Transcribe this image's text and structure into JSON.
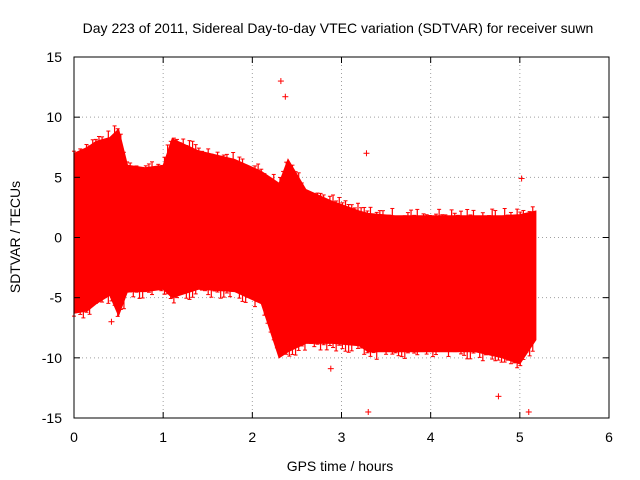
{
  "chart_data": {
    "type": "scatter",
    "title": "Day 223 of 2011, Sidereal Day-to-day VTEC variation (SDTVAR) for receiver suwn",
    "xlabel": "GPS time / hours",
    "ylabel": "SDTVAR / TECUs",
    "xlim": [
      0,
      6
    ],
    "ylim": [
      -15,
      15
    ],
    "xticks": [
      0,
      1,
      2,
      3,
      4,
      5,
      6
    ],
    "yticks": [
      -15,
      -10,
      -5,
      0,
      5,
      10,
      15
    ],
    "grid": true,
    "series_color": "#ff0000",
    "grid_color": "#a0a0a0",
    "series": [
      {
        "name": "SDTVAR",
        "style": "points with error bars",
        "x": [
          0.0,
          0.15,
          0.25,
          0.4,
          0.5,
          0.6,
          0.8,
          1.0,
          1.1,
          1.4,
          1.8,
          2.1,
          2.3,
          2.4,
          2.6,
          2.9,
          3.2,
          3.3,
          3.6,
          4.0,
          4.5,
          4.8,
          5.0,
          5.18
        ],
        "y_upper": [
          7.0,
          7.5,
          8.0,
          8.3,
          9.0,
          6.0,
          5.8,
          6.0,
          8.2,
          7.2,
          6.5,
          5.5,
          4.5,
          6.5,
          4.0,
          3.0,
          2.2,
          2.0,
          1.8,
          1.8,
          1.8,
          1.8,
          1.9,
          2.2
        ],
        "y_lower": [
          -6.3,
          -6.1,
          -5.5,
          -4.8,
          -6.5,
          -4.5,
          -4.5,
          -4.3,
          -5.0,
          -4.3,
          -4.5,
          -5.5,
          -10.0,
          -9.5,
          -8.8,
          -8.8,
          -9.0,
          -9.5,
          -9.5,
          -9.5,
          -9.5,
          -10.0,
          -10.5,
          -8.5
        ],
        "outliers": [
          {
            "x": 2.32,
            "y": 13.0
          },
          {
            "x": 2.37,
            "y": 11.7
          },
          {
            "x": 3.28,
            "y": 7.0
          },
          {
            "x": 3.3,
            "y": -14.5
          },
          {
            "x": 4.76,
            "y": -13.2
          },
          {
            "x": 5.02,
            "y": 4.9
          },
          {
            "x": 5.1,
            "y": -14.5
          },
          {
            "x": 2.88,
            "y": -10.9
          },
          {
            "x": 0.42,
            "y": -7.0
          }
        ]
      }
    ]
  }
}
